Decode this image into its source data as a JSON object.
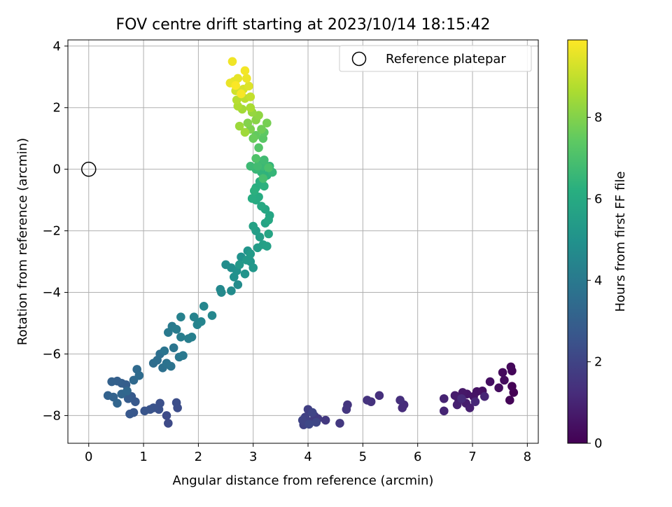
{
  "chart_data": {
    "type": "scatter",
    "title": "FOV centre drift starting at 2023/10/14 18:15:42",
    "xlabel": "Angular distance from reference (arcmin)",
    "ylabel": "Rotation from reference (arcmin)",
    "xlim": [
      -0.38,
      8.2
    ],
    "ylim": [
      -8.9,
      4.2
    ],
    "x_ticks": [
      0,
      1,
      2,
      3,
      4,
      5,
      6,
      7,
      8
    ],
    "y_ticks": [
      -8,
      -6,
      -4,
      -2,
      0,
      2,
      4
    ],
    "grid": true,
    "legend": {
      "position": "top-right",
      "entries": [
        "Reference platepar"
      ]
    },
    "reference_point": {
      "x": 0,
      "y": 0,
      "label": "Reference platepar"
    },
    "colorbar": {
      "label": "Hours from first FF file",
      "min": 0,
      "max": 9.9,
      "ticks": [
        0,
        2,
        4,
        6,
        8
      ],
      "colormap": "viridis"
    },
    "series": [
      {
        "points": [
          [
            7.75,
            -7.25,
            0.0
          ],
          [
            7.72,
            -7.05,
            0.05
          ],
          [
            7.68,
            -7.5,
            0.1
          ],
          [
            7.72,
            -6.55,
            0.15
          ],
          [
            7.7,
            -6.42,
            0.2
          ],
          [
            7.55,
            -6.6,
            0.25
          ],
          [
            7.58,
            -6.85,
            0.3
          ],
          [
            7.48,
            -7.1,
            0.35
          ],
          [
            7.32,
            -6.9,
            0.4
          ],
          [
            7.18,
            -7.2,
            0.45
          ],
          [
            7.08,
            -7.22,
            0.5
          ],
          [
            7.02,
            -7.38,
            0.55
          ],
          [
            6.9,
            -7.3,
            0.6
          ],
          [
            6.82,
            -7.25,
            0.65
          ],
          [
            6.75,
            -7.5,
            0.7
          ],
          [
            6.68,
            -7.35,
            0.75
          ],
          [
            6.88,
            -7.6,
            0.8
          ],
          [
            6.95,
            -7.75,
            0.85
          ],
          [
            6.72,
            -7.65,
            0.9
          ],
          [
            6.48,
            -7.45,
            0.95
          ],
          [
            6.48,
            -7.85,
            1.0
          ],
          [
            7.22,
            -7.38,
            1.05
          ],
          [
            7.05,
            -7.55,
            1.1
          ],
          [
            6.8,
            -7.45,
            1.15
          ],
          [
            5.75,
            -7.65,
            1.2
          ],
          [
            5.72,
            -7.75,
            1.25
          ],
          [
            5.68,
            -7.5,
            1.3
          ],
          [
            5.3,
            -7.35,
            1.35
          ],
          [
            5.15,
            -7.55,
            1.4
          ],
          [
            5.08,
            -7.5,
            1.45
          ],
          [
            4.72,
            -7.65,
            1.5
          ],
          [
            4.7,
            -7.8,
            1.55
          ],
          [
            4.58,
            -8.25,
            1.6
          ],
          [
            4.32,
            -8.15,
            1.65
          ],
          [
            4.18,
            -8.1,
            1.7
          ],
          [
            4.12,
            -8.02,
            1.75
          ],
          [
            4.05,
            -8.2,
            1.8
          ],
          [
            4.0,
            -7.8,
            1.85
          ],
          [
            3.95,
            -8.05,
            1.9
          ],
          [
            3.92,
            -8.3,
            1.95
          ],
          [
            3.9,
            -8.15,
            2.0
          ],
          [
            4.08,
            -7.9,
            2.05
          ],
          [
            4.15,
            -8.22,
            2.1
          ],
          [
            4.02,
            -8.28,
            2.15
          ],
          [
            1.45,
            -8.25,
            2.2
          ],
          [
            1.42,
            -8.0,
            2.25
          ],
          [
            1.62,
            -7.75,
            2.3
          ],
          [
            1.6,
            -7.58,
            2.35
          ],
          [
            1.3,
            -7.6,
            2.4
          ],
          [
            1.28,
            -7.8,
            2.45
          ],
          [
            1.18,
            -7.75,
            2.5
          ],
          [
            1.12,
            -7.8,
            2.55
          ],
          [
            1.02,
            -7.85,
            2.6
          ],
          [
            0.82,
            -7.9,
            2.65
          ],
          [
            0.75,
            -7.95,
            2.7
          ],
          [
            0.85,
            -7.55,
            2.75
          ],
          [
            0.78,
            -7.38,
            2.8
          ],
          [
            0.72,
            -7.45,
            2.85
          ],
          [
            0.68,
            -7.0,
            2.9
          ],
          [
            0.6,
            -6.95,
            2.95
          ],
          [
            0.52,
            -6.88,
            3.0
          ],
          [
            0.42,
            -6.9,
            3.05
          ],
          [
            0.35,
            -7.35,
            3.1
          ],
          [
            0.45,
            -7.4,
            3.15
          ],
          [
            0.52,
            -7.6,
            3.2
          ],
          [
            0.6,
            -7.3,
            3.25
          ],
          [
            0.7,
            -7.2,
            3.3
          ],
          [
            0.82,
            -6.85,
            3.35
          ],
          [
            0.88,
            -6.5,
            3.4
          ],
          [
            0.92,
            -6.7,
            3.45
          ],
          [
            1.18,
            -6.3,
            3.5
          ],
          [
            1.25,
            -6.2,
            3.55
          ],
          [
            1.3,
            -6.0,
            3.6
          ],
          [
            1.35,
            -6.45,
            3.65
          ],
          [
            1.42,
            -6.3,
            3.7
          ],
          [
            1.5,
            -6.4,
            3.75
          ],
          [
            1.38,
            -5.9,
            3.8
          ],
          [
            1.55,
            -5.8,
            3.85
          ],
          [
            1.65,
            -6.1,
            3.9
          ],
          [
            1.72,
            -6.05,
            3.95
          ],
          [
            1.45,
            -5.3,
            4.0
          ],
          [
            1.52,
            -5.1,
            4.05
          ],
          [
            1.6,
            -5.2,
            4.1
          ],
          [
            1.68,
            -5.45,
            4.15
          ],
          [
            1.82,
            -5.5,
            4.2
          ],
          [
            1.88,
            -5.45,
            4.25
          ],
          [
            1.68,
            -4.8,
            4.3
          ],
          [
            1.92,
            -4.8,
            4.35
          ],
          [
            1.98,
            -5.05,
            4.4
          ],
          [
            2.05,
            -4.95,
            4.45
          ],
          [
            2.1,
            -4.45,
            4.5
          ],
          [
            2.25,
            -4.75,
            4.55
          ],
          [
            2.4,
            -3.9,
            4.6
          ],
          [
            2.42,
            -4.0,
            4.65
          ],
          [
            2.6,
            -3.95,
            4.7
          ],
          [
            2.72,
            -3.75,
            4.75
          ],
          [
            2.5,
            -3.1,
            4.8
          ],
          [
            2.6,
            -3.2,
            4.85
          ],
          [
            2.65,
            -3.5,
            4.9
          ],
          [
            2.7,
            -3.3,
            4.95
          ],
          [
            2.78,
            -2.85,
            5.0
          ],
          [
            2.85,
            -3.4,
            5.05
          ],
          [
            2.9,
            -2.65,
            5.1
          ],
          [
            2.95,
            -3.0,
            5.15
          ],
          [
            3.0,
            -3.2,
            5.2
          ],
          [
            2.75,
            -3.1,
            5.25
          ],
          [
            2.88,
            -2.95,
            5.3
          ],
          [
            2.95,
            -2.75,
            5.35
          ],
          [
            3.08,
            -2.55,
            5.4
          ],
          [
            3.05,
            -2.0,
            5.45
          ],
          [
            3.12,
            -2.2,
            5.5
          ],
          [
            3.18,
            -2.45,
            5.55
          ],
          [
            3.25,
            -2.5,
            5.6
          ],
          [
            3.0,
            -1.85,
            5.65
          ],
          [
            3.22,
            -1.75,
            5.7
          ],
          [
            3.28,
            -2.1,
            5.75
          ],
          [
            3.3,
            -1.5,
            5.8
          ],
          [
            3.22,
            -1.3,
            5.85
          ],
          [
            3.28,
            -1.65,
            5.9
          ],
          [
            3.15,
            -1.2,
            5.95
          ],
          [
            3.05,
            -1.0,
            6.0
          ],
          [
            3.1,
            -0.9,
            6.05
          ],
          [
            2.98,
            -0.95,
            6.1
          ],
          [
            3.05,
            -0.6,
            6.15
          ],
          [
            3.12,
            -0.4,
            6.2
          ],
          [
            3.02,
            -0.7,
            6.25
          ],
          [
            3.2,
            -0.55,
            6.3
          ],
          [
            3.25,
            -0.2,
            6.35
          ],
          [
            3.15,
            -0.1,
            6.4
          ],
          [
            3.3,
            0.1,
            6.45
          ],
          [
            3.35,
            -0.1,
            6.5
          ],
          [
            3.05,
            0.0,
            6.55
          ],
          [
            3.12,
            0.25,
            6.6
          ],
          [
            3.18,
            0.1,
            6.65
          ],
          [
            2.95,
            0.1,
            6.7
          ],
          [
            3.2,
            0.3,
            6.75
          ],
          [
            3.08,
            0.1,
            6.8
          ],
          [
            3.18,
            -0.3,
            6.9
          ],
          [
            3.28,
            0.05,
            7.0
          ],
          [
            3.05,
            0.35,
            7.1
          ],
          [
            3.1,
            0.7,
            7.2
          ],
          [
            3.18,
            1.0,
            7.3
          ],
          [
            3.2,
            1.2,
            7.4
          ],
          [
            3.05,
            1.1,
            7.5
          ],
          [
            3.0,
            1.0,
            7.6
          ],
          [
            3.15,
            1.3,
            7.7
          ],
          [
            3.25,
            1.5,
            7.8
          ],
          [
            2.95,
            1.3,
            7.9
          ],
          [
            2.9,
            1.5,
            8.0
          ],
          [
            3.05,
            1.6,
            8.1
          ],
          [
            3.1,
            1.75,
            8.2
          ],
          [
            2.98,
            1.85,
            8.3
          ],
          [
            2.75,
            1.4,
            8.4
          ],
          [
            2.85,
            1.2,
            8.45
          ],
          [
            2.8,
            1.95,
            8.5
          ],
          [
            2.95,
            2.0,
            8.6
          ],
          [
            2.72,
            2.05,
            8.7
          ],
          [
            2.7,
            2.25,
            8.8
          ],
          [
            2.85,
            2.3,
            8.9
          ],
          [
            2.95,
            2.35,
            9.0
          ],
          [
            2.78,
            2.5,
            9.1
          ],
          [
            2.68,
            2.55,
            9.2
          ],
          [
            2.82,
            2.6,
            9.3
          ],
          [
            2.92,
            2.7,
            9.4
          ],
          [
            2.65,
            2.85,
            9.5
          ],
          [
            2.72,
            2.95,
            9.55
          ],
          [
            2.58,
            2.8,
            9.6
          ],
          [
            2.88,
            2.95,
            9.65
          ],
          [
            2.62,
            3.5,
            9.7
          ],
          [
            2.85,
            3.2,
            9.75
          ],
          [
            2.78,
            2.45,
            9.8
          ],
          [
            2.68,
            2.72,
            9.85
          ]
        ]
      }
    ]
  }
}
